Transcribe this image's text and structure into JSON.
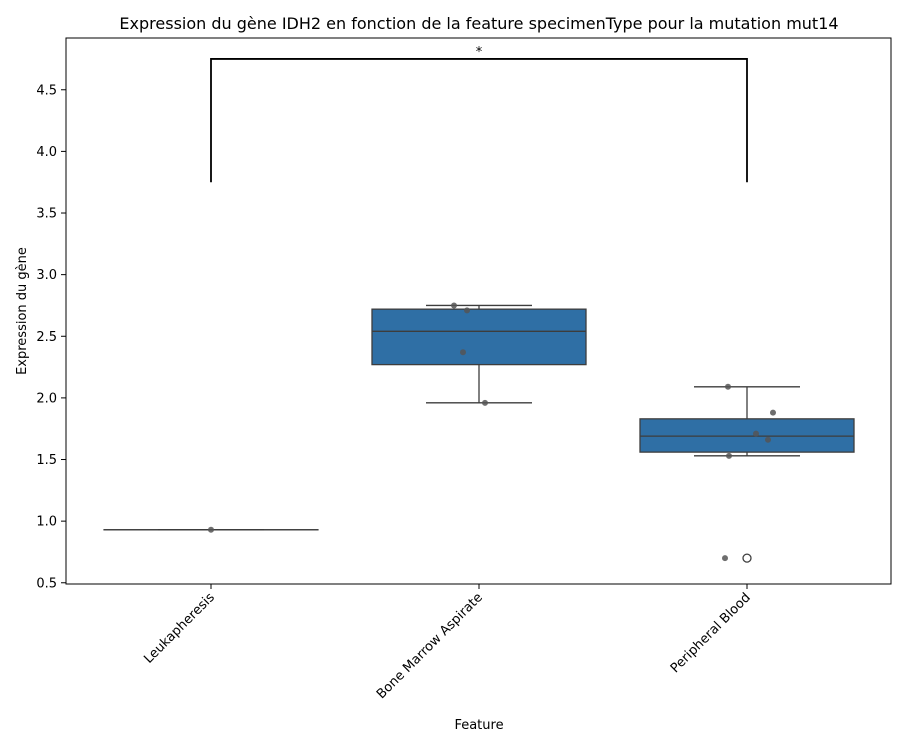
{
  "chart_data": {
    "type": "box",
    "title": "Expression du gène IDH2 en fonction de la feature specimenType pour la mutation mut14",
    "xlabel": "Feature",
    "ylabel": "Expression du gène",
    "ylim": [
      0.49,
      4.92
    ],
    "yticks": [
      0.5,
      1.0,
      1.5,
      2.0,
      2.5,
      3.0,
      3.5,
      4.0,
      4.5
    ],
    "ytick_labels": [
      "0.5",
      "1.0",
      "1.5",
      "2.0",
      "2.5",
      "3.0",
      "3.5",
      "4.0",
      "4.5"
    ],
    "categories": [
      "Leukapheresis",
      "Bone Marrow Aspirate",
      "Peripheral Blood"
    ],
    "grid": false,
    "box_color": "#2f6fa5",
    "line_color": "#3d3d3d",
    "point_color": "#555555",
    "boxes": [
      {
        "category": "Leukapheresis",
        "whisker_low": 0.93,
        "q1": 0.93,
        "median": 0.93,
        "q3": 0.93,
        "whisker_high": 0.93,
        "outliers": []
      },
      {
        "category": "Bone Marrow Aspirate",
        "whisker_low": 1.96,
        "q1": 2.27,
        "median": 2.54,
        "q3": 2.72,
        "whisker_high": 2.75,
        "outliers": []
      },
      {
        "category": "Peripheral Blood",
        "whisker_low": 1.53,
        "q1": 1.56,
        "median": 1.69,
        "q3": 1.83,
        "whisker_high": 2.09,
        "outliers": [
          0.7
        ]
      }
    ],
    "points": [
      {
        "category": "Leukapheresis",
        "values": [
          0.93
        ]
      },
      {
        "category": "Bone Marrow Aspirate",
        "values": [
          2.75,
          2.71,
          2.37,
          1.96
        ]
      },
      {
        "category": "Peripheral Blood",
        "values": [
          2.09,
          1.88,
          1.71,
          1.66,
          1.53,
          0.7
        ]
      }
    ],
    "annotation": {
      "label": "*",
      "from": "Leukapheresis",
      "to": "Peripheral Blood",
      "bracket_top": 4.75,
      "bracket_bottom": 3.75
    }
  }
}
